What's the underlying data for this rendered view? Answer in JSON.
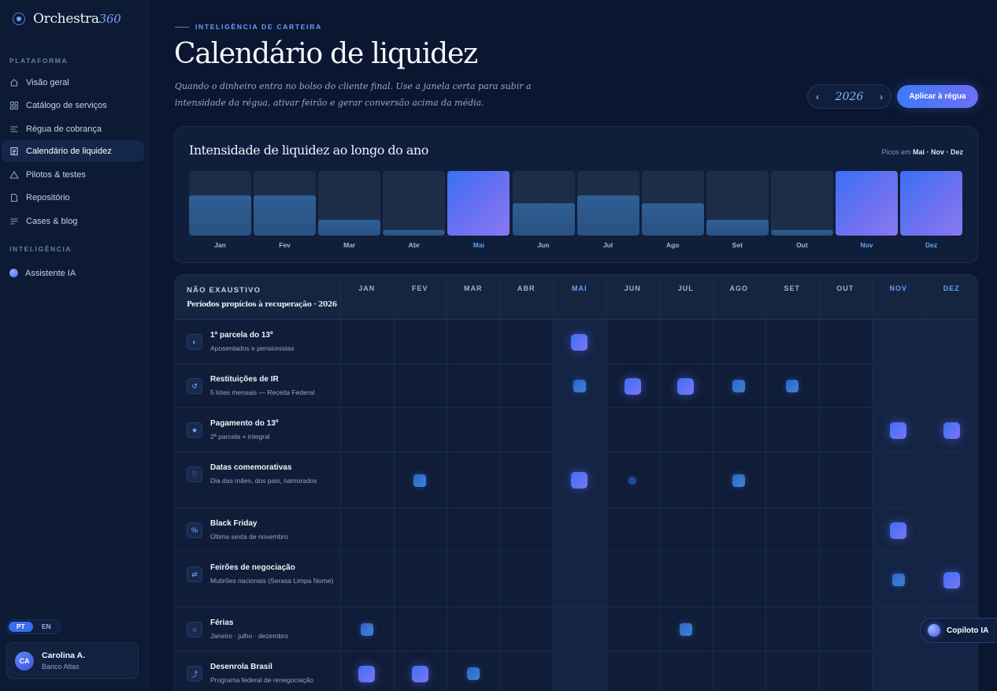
{
  "brand": {
    "name": "Orchestra",
    "accent": "360"
  },
  "sidebar": {
    "section_platform": "PLATAFORMA",
    "items": [
      {
        "label": "Visão geral",
        "icon": "home-icon"
      },
      {
        "label": "Catálogo de serviços",
        "icon": "grid-icon"
      },
      {
        "label": "Régua de cobrança",
        "icon": "list-icon"
      },
      {
        "label": "Calendário de liquidez",
        "icon": "document-icon",
        "active": true
      },
      {
        "label": "Pilotos & testes",
        "icon": "triangle-icon"
      },
      {
        "label": "Repositório",
        "icon": "file-icon"
      },
      {
        "label": "Cases & blog",
        "icon": "lines-icon"
      }
    ],
    "section_intel": "INTELIGÊNCIA",
    "assistant_label": "Assistente IA",
    "lang": {
      "pt": "PT",
      "en": "EN",
      "selected": "PT"
    },
    "user": {
      "initials": "CA",
      "name": "Carolina A.",
      "org": "Banco Atlas"
    }
  },
  "header": {
    "eyebrow": "INTELIGÊNCIA DE CARTEIRA",
    "title": "Calendário de liquidez",
    "subtitle": "Quando o dinheiro entra no bolso do cliente final. Use a janela certa para subir a intensidade da régua, ativar feirão e gerar conversão acima da média.",
    "year": "2026",
    "prev_arrow": "‹",
    "next_arrow": "›",
    "apply_label": "Aplicar à régua"
  },
  "chart_data": {
    "type": "bar",
    "title": "Intensidade de liquidez ao longo do ano",
    "peaks_prefix": "Picos em",
    "peaks_text": "Mai · Nov · Dez",
    "categories": [
      "Jan",
      "Fev",
      "Mar",
      "Abr",
      "Mai",
      "Jun",
      "Jul",
      "Ago",
      "Set",
      "Out",
      "Nov",
      "Dez"
    ],
    "values": [
      62,
      62,
      25,
      8,
      100,
      50,
      62,
      50,
      25,
      8,
      100,
      100
    ],
    "peaks": [
      "Mai",
      "Nov",
      "Dez"
    ],
    "ylim": [
      0,
      100
    ]
  },
  "table": {
    "title": "NÃO EXAUSTIVO",
    "subtitle": "Períodos propícios à recuperação · 2026",
    "months": [
      "JAN",
      "FEV",
      "MAR",
      "ABR",
      "MAI",
      "JUN",
      "JUL",
      "AGO",
      "SET",
      "OUT",
      "NOV",
      "DEZ"
    ],
    "peak_months": [
      "MAI",
      "NOV",
      "DEZ"
    ],
    "rows": [
      {
        "title": "1ª parcela do 13º",
        "desc": "Aposentados e pensionistas",
        "icon": "half-circle-icon",
        "glyph": "◐",
        "markers": [
          {
            "m": 4,
            "s": "l"
          }
        ]
      },
      {
        "title": "Restituições de IR",
        "desc": "5 lotes mensais — Receita Federal",
        "icon": "refresh-icon",
        "glyph": "↺",
        "markers": [
          {
            "m": 4,
            "s": "m"
          },
          {
            "m": 5,
            "s": "l"
          },
          {
            "m": 6,
            "s": "l"
          },
          {
            "m": 7,
            "s": "m"
          },
          {
            "m": 8,
            "s": "m"
          }
        ]
      },
      {
        "title": "Pagamento do 13º",
        "desc": "2ª parcela + integral",
        "icon": "star-icon",
        "glyph": "★",
        "markers": [
          {
            "m": 10,
            "s": "l"
          },
          {
            "m": 11,
            "s": "l"
          }
        ]
      },
      {
        "title": "Datas comemorativas",
        "desc": "Dia das mães, dos pais, namorados",
        "icon": "heart-icon",
        "glyph": "♡",
        "markers": [
          {
            "m": 1,
            "s": "m"
          },
          {
            "m": 4,
            "s": "l"
          },
          {
            "m": 5,
            "s": "s"
          },
          {
            "m": 7,
            "s": "m"
          }
        ]
      },
      {
        "title": "Black Friday",
        "desc": "Última sexta de novembro",
        "icon": "percent-icon",
        "glyph": "%",
        "markers": [
          {
            "m": 10,
            "s": "l"
          }
        ]
      },
      {
        "title": "Feirões de negociação",
        "desc": "Mutirões nacionais (Serasa Limpa Nome)",
        "icon": "swap-icon",
        "glyph": "⇄",
        "markers": [
          {
            "m": 10,
            "s": "m"
          },
          {
            "m": 11,
            "s": "l"
          }
        ]
      },
      {
        "title": "Férias",
        "desc": "Janeiro · julho · dezembro",
        "icon": "sun-icon",
        "glyph": "☼",
        "markers": [
          {
            "m": 0,
            "s": "m"
          },
          {
            "m": 6,
            "s": "m"
          }
        ]
      },
      {
        "title": "Desenrola Brasil",
        "desc": "Programa federal de renegociação",
        "icon": "hook-arrow-icon",
        "glyph": "⤴",
        "markers": [
          {
            "m": 0,
            "s": "l"
          },
          {
            "m": 1,
            "s": "l"
          },
          {
            "m": 2,
            "s": "m"
          }
        ]
      }
    ]
  },
  "copilot_label": "Copiloto IA"
}
